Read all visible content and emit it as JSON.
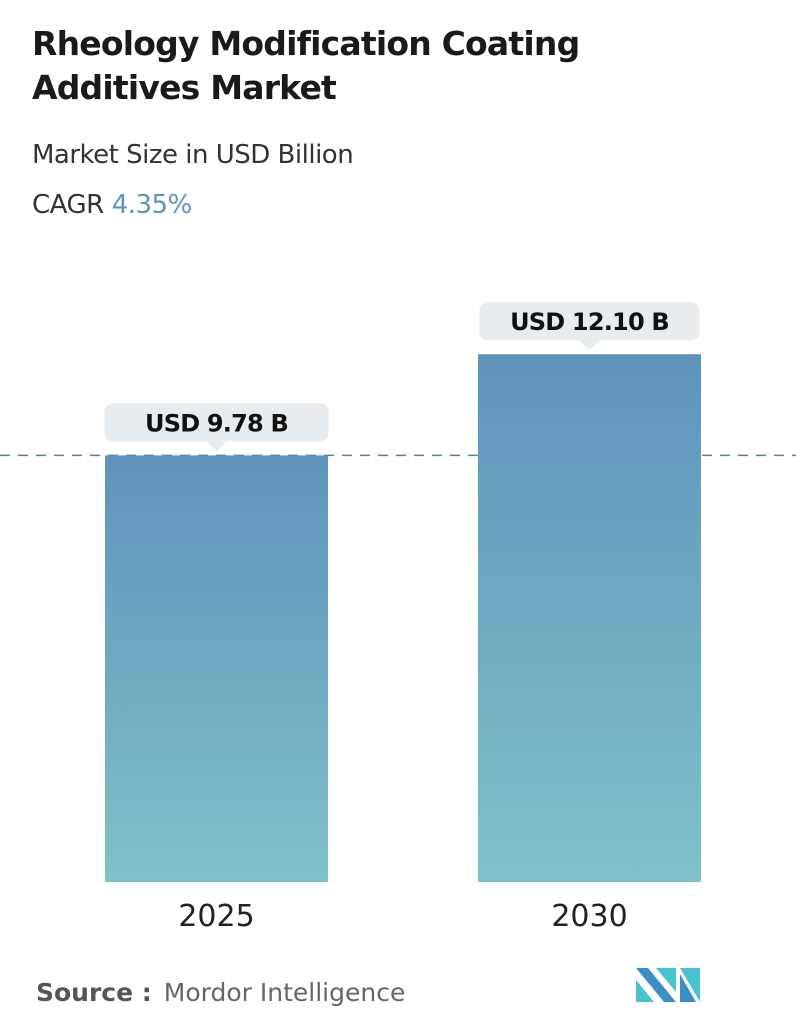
{
  "title": "Rheology Modification Coating Additives Market",
  "subtitle": "Market Size in USD Billion",
  "cagr_label": "CAGR",
  "cagr_value": "4.35%",
  "source_label": "Source :",
  "source_value": "Mordor Intelligence",
  "logo_icon": "mordor-intelligence-logo",
  "colors": {
    "bar_top": "#5f93bb",
    "bar_bottom": "#7fc2c9",
    "accent": "#5e93bd",
    "label_bg": "#e6ecf0"
  },
  "chart_data": {
    "type": "bar",
    "categories": [
      "2025",
      "2030"
    ],
    "values": [
      9.78,
      12.1
    ],
    "data_labels": [
      "USD 9.78 B",
      "USD 12.10 B"
    ],
    "title": "Rheology Modification Coating Additives Market",
    "ylabel": "Market Size in USD Billion",
    "reference_line": 9.78,
    "grid": false
  }
}
